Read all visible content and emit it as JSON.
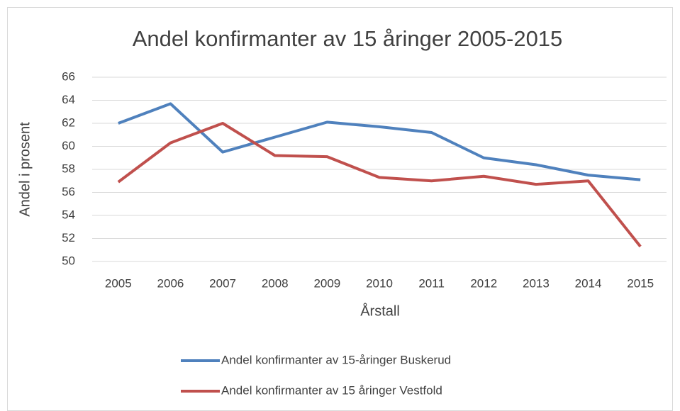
{
  "chart_data": {
    "type": "line",
    "title": "Andel konfirmanter av 15 åringer  2005-2015",
    "x_label": "Årstall",
    "y_label": "Andel i prosent",
    "categories": [
      "2005",
      "2006",
      "2007",
      "2008",
      "2009",
      "2010",
      "2011",
      "2012",
      "2013",
      "2014",
      "2015"
    ],
    "series": [
      {
        "name": "Andel konfirmanter av 15-åringer Buskerud",
        "color": "#4f81bd",
        "values": [
          62,
          63.7,
          59.5,
          60.8,
          62.1,
          61.7,
          61.2,
          59,
          58.4,
          57.5,
          57.1
        ]
      },
      {
        "name": "Andel konfirmanter av 15 åringer Vestfold",
        "color": "#c0504d",
        "values": [
          56.9,
          60.3,
          62,
          59.2,
          59.1,
          57.3,
          57,
          57.4,
          56.7,
          57,
          51.3
        ]
      }
    ],
    "ylim": [
      50,
      66
    ],
    "yticks": [
      50,
      52,
      54,
      56,
      58,
      60,
      62,
      64,
      66
    ],
    "grid": true,
    "legend": "bottom"
  }
}
